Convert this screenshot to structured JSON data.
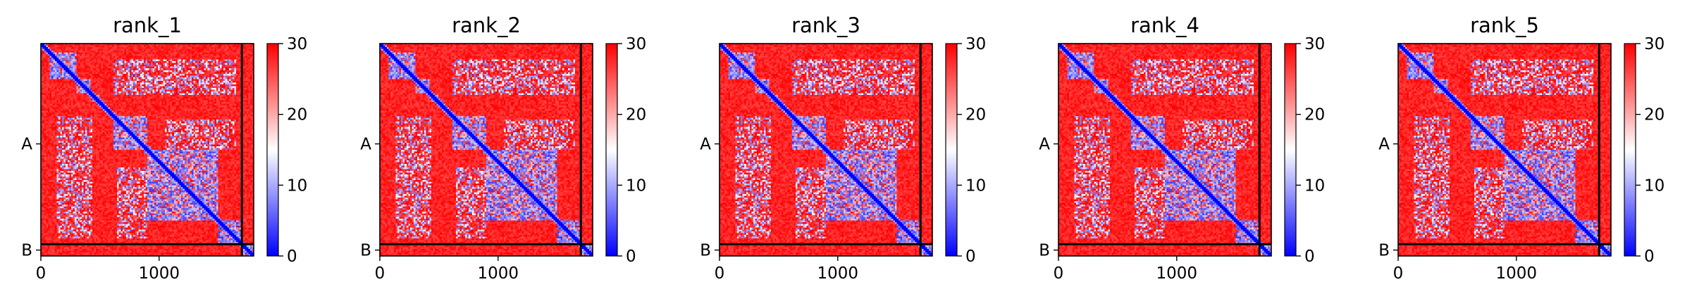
{
  "chart_data": {
    "type": "heatmap",
    "colormap": {
      "name": "bwr",
      "low_color": "#0000ff",
      "mid_color": "#ffffff",
      "high_color": "#ff0000",
      "vmin": 0,
      "vmax": 30
    },
    "axes": {
      "x_range": [
        0,
        1800
      ],
      "x_ticks": [
        {
          "value": 0,
          "label": "0"
        },
        {
          "value": 1000,
          "label": "1000"
        }
      ],
      "y_ticks": [
        {
          "value": 850,
          "label": "A"
        },
        {
          "value": 1750,
          "label": "B"
        }
      ],
      "chain_boundary": 1700,
      "grid": false
    },
    "colorbar": {
      "ticks": [
        {
          "value": 0,
          "label": "0"
        },
        {
          "value": 10,
          "label": "10"
        },
        {
          "value": 20,
          "label": "20"
        },
        {
          "value": 30,
          "label": "30"
        }
      ]
    },
    "panels": [
      {
        "title": "rank_1"
      },
      {
        "title": "rank_2"
      },
      {
        "title": "rank_3"
      },
      {
        "title": "rank_4"
      },
      {
        "title": "rank_5"
      }
    ]
  }
}
